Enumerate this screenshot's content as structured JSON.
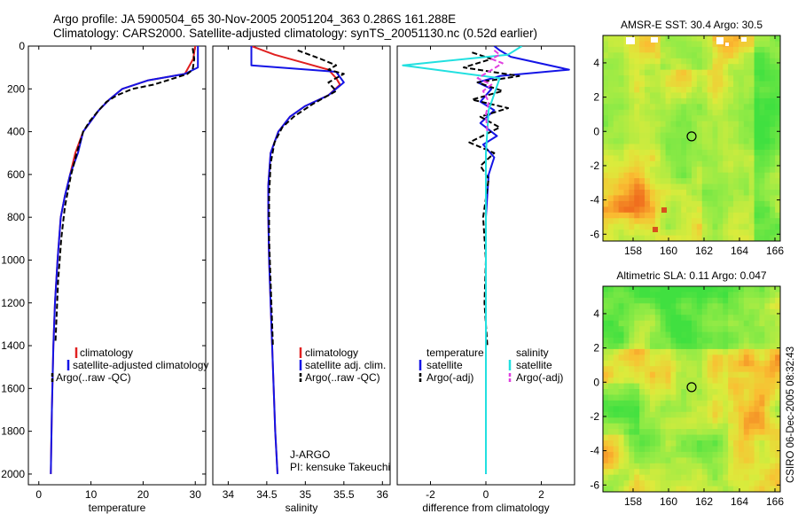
{
  "header": {
    "title_line1": "Argo profile: JA 5900504_65 30-Nov-2005 20051204_363 0.286S 161.288E",
    "title_line2": "Climatology: CARS2000. Satellite-adjusted climatology: synTS_20051130.nc (0.52d earlier)"
  },
  "colors": {
    "climatology": "#e02020",
    "satellite": "#1414e6",
    "argo": "#000000",
    "satellite_diff": "#22e0e0",
    "argo_adj": "#e040e0"
  },
  "chart_data": [
    {
      "type": "line",
      "name": "temperature-panel",
      "xlabel": "temperature",
      "ylabel": "",
      "xlim": [
        -2,
        32
      ],
      "ylim": [
        2050,
        0
      ],
      "xticks": [
        0,
        10,
        20,
        30
      ],
      "yticks": [
        0,
        200,
        400,
        600,
        800,
        1000,
        1200,
        1400,
        1600,
        1800,
        2000
      ],
      "legend": [
        "climatology",
        "satellite-adjusted climatology",
        "Argo(..raw -QC)"
      ],
      "series": [
        {
          "name": "climatology",
          "x": [
            30.0,
            29.6,
            28.0,
            21.0,
            16.0,
            13.5,
            11.5,
            10.0,
            8.5,
            7.0,
            6.0,
            5.0,
            4.2,
            3.6,
            3.1,
            2.8,
            2.5,
            2.3
          ],
          "y": [
            0,
            60,
            130,
            160,
            200,
            250,
            300,
            350,
            400,
            500,
            600,
            700,
            800,
            1000,
            1200,
            1400,
            1700,
            2000
          ]
        },
        {
          "name": "satellite-adjusted climatology",
          "x": [
            30.5,
            30.5,
            30.5,
            28.0,
            21.0,
            16.0,
            13.5,
            11.5,
            10.0,
            8.5,
            7.5,
            6.0,
            5.0,
            4.2,
            3.6,
            3.1,
            2.8,
            2.5,
            2.3
          ],
          "y": [
            0,
            60,
            100,
            130,
            160,
            200,
            250,
            300,
            350,
            400,
            500,
            600,
            700,
            800,
            1000,
            1200,
            1400,
            1700,
            2000
          ]
        },
        {
          "name": "Argo(..raw -QC)",
          "x": [
            29.5,
            29.8,
            29.5,
            28.5,
            26.0,
            22.0,
            18.0,
            15.0,
            13.0,
            11.5,
            9.8,
            8.5,
            7.5,
            6.2,
            5.0,
            4.3,
            3.7,
            3.2
          ],
          "y": [
            10,
            60,
            110,
            130,
            150,
            180,
            200,
            230,
            260,
            300,
            350,
            400,
            480,
            600,
            750,
            900,
            1100,
            1380
          ]
        }
      ]
    },
    {
      "type": "line",
      "name": "salinity-panel",
      "xlabel": "salinity",
      "xlim": [
        33.8,
        36.1
      ],
      "ylim": [
        2050,
        0
      ],
      "xticks": [
        34,
        34.5,
        35,
        35.5,
        36
      ],
      "legend": [
        "climatology",
        "satellite adj. clim.",
        "Argo(..raw -QC)"
      ],
      "annotation": [
        "J-ARGO",
        "PI: kensuke Takeuchi"
      ],
      "series": [
        {
          "name": "climatology",
          "x": [
            34.3,
            34.6,
            35.0,
            35.3,
            35.4,
            35.45,
            35.3,
            35.0,
            34.8,
            34.65,
            34.55,
            34.52,
            34.52,
            34.53,
            34.55,
            34.58,
            34.61,
            34.64
          ],
          "y": [
            0,
            40,
            80,
            110,
            150,
            180,
            230,
            280,
            330,
            400,
            500,
            650,
            800,
            1000,
            1200,
            1500,
            1800,
            2000
          ]
        },
        {
          "name": "satellite adj. clim.",
          "x": [
            34.3,
            34.3,
            34.3,
            35.4,
            35.5,
            35.3,
            35.0,
            34.8,
            34.65,
            34.55,
            34.52,
            34.52,
            34.53,
            34.55,
            34.58,
            34.61,
            34.64
          ],
          "y": [
            0,
            40,
            90,
            120,
            170,
            230,
            280,
            330,
            400,
            500,
            650,
            800,
            1000,
            1200,
            1500,
            1800,
            2000
          ]
        },
        {
          "name": "Argo(..raw -QC)",
          "x": [
            34.9,
            35.2,
            35.4,
            35.3,
            35.5,
            35.3,
            35.4,
            35.1,
            34.85,
            34.7,
            34.6,
            34.55,
            34.53,
            34.53,
            34.55,
            34.58
          ],
          "y": [
            20,
            60,
            90,
            110,
            130,
            170,
            210,
            270,
            330,
            380,
            450,
            550,
            700,
            900,
            1100,
            1400
          ]
        }
      ]
    },
    {
      "type": "line",
      "name": "difference-panel",
      "xlabel": "difference from climatology",
      "xlim": [
        -3.2,
        3.2
      ],
      "ylim": [
        2050,
        0
      ],
      "xticks": [
        -2,
        0,
        2
      ],
      "legend": [
        "temperature",
        "satellite",
        "Argo(-adj)",
        "salinity",
        "satellite",
        "Argo(-adj)"
      ],
      "series": [
        {
          "name": "temperature satellite",
          "x": [
            0.3,
            0.5,
            0.9,
            3.0,
            0.5,
            -0.3,
            0.2,
            -0.2,
            0.3,
            -0.2,
            0.4,
            -0.1,
            0.3,
            0.1,
            0.0,
            0.0,
            0.0
          ],
          "y": [
            0,
            20,
            50,
            110,
            140,
            170,
            200,
            260,
            300,
            360,
            420,
            460,
            520,
            600,
            800,
            1200,
            2000
          ]
        },
        {
          "name": "temperature Argo(-adj)",
          "x": [
            -0.5,
            0.2,
            -0.8,
            1.2,
            -0.3,
            0.6,
            -0.5,
            0.8,
            -0.2,
            0.5,
            -0.6,
            0.3,
            -0.2,
            0.1,
            -0.1,
            0.0,
            -0.05,
            0.05
          ],
          "y": [
            30,
            60,
            100,
            140,
            170,
            210,
            250,
            290,
            330,
            380,
            450,
            500,
            560,
            620,
            800,
            1000,
            1200,
            1400
          ]
        },
        {
          "name": "salinity satellite",
          "x": [
            1.3,
            0.8,
            -3.0,
            0.5,
            0.1,
            0.0,
            0.0,
            0.0
          ],
          "y": [
            0,
            40,
            90,
            150,
            300,
            500,
            1000,
            2000
          ]
        },
        {
          "name": "salinity Argo(-adj)",
          "x": [
            0.3,
            0.5,
            0.2,
            0.6,
            0.1,
            -0.3,
            0.2,
            -0.1,
            0.1,
            0.0,
            0.05
          ],
          "y": [
            20,
            40,
            60,
            80,
            120,
            150,
            180,
            210,
            260,
            320,
            400
          ]
        }
      ]
    },
    {
      "type": "heatmap",
      "name": "sst-map",
      "title": "AMSR-E SST: 30.4  Argo: 30.5",
      "xlim": [
        156.3,
        166.3
      ],
      "ylim": [
        -6.4,
        5.6
      ],
      "xticks": [
        158,
        160,
        162,
        164,
        166
      ],
      "yticks": [
        -6,
        -4,
        -2,
        0,
        2,
        4
      ],
      "marker": {
        "lon": 161.3,
        "lat": -0.29
      }
    },
    {
      "type": "heatmap",
      "name": "sla-map",
      "title": "Altimetric SLA: 0.11  Argo: 0.047",
      "xlim": [
        156.3,
        166.3
      ],
      "ylim": [
        -6.4,
        5.6
      ],
      "xticks": [
        158,
        160,
        162,
        164,
        166
      ],
      "yticks": [
        -6,
        -4,
        -2,
        0,
        2,
        4
      ],
      "marker": {
        "lon": 161.3,
        "lat": -0.29
      }
    }
  ],
  "footer": {
    "credit": "CSIRO 06-Dec-2005 08:32:43"
  }
}
